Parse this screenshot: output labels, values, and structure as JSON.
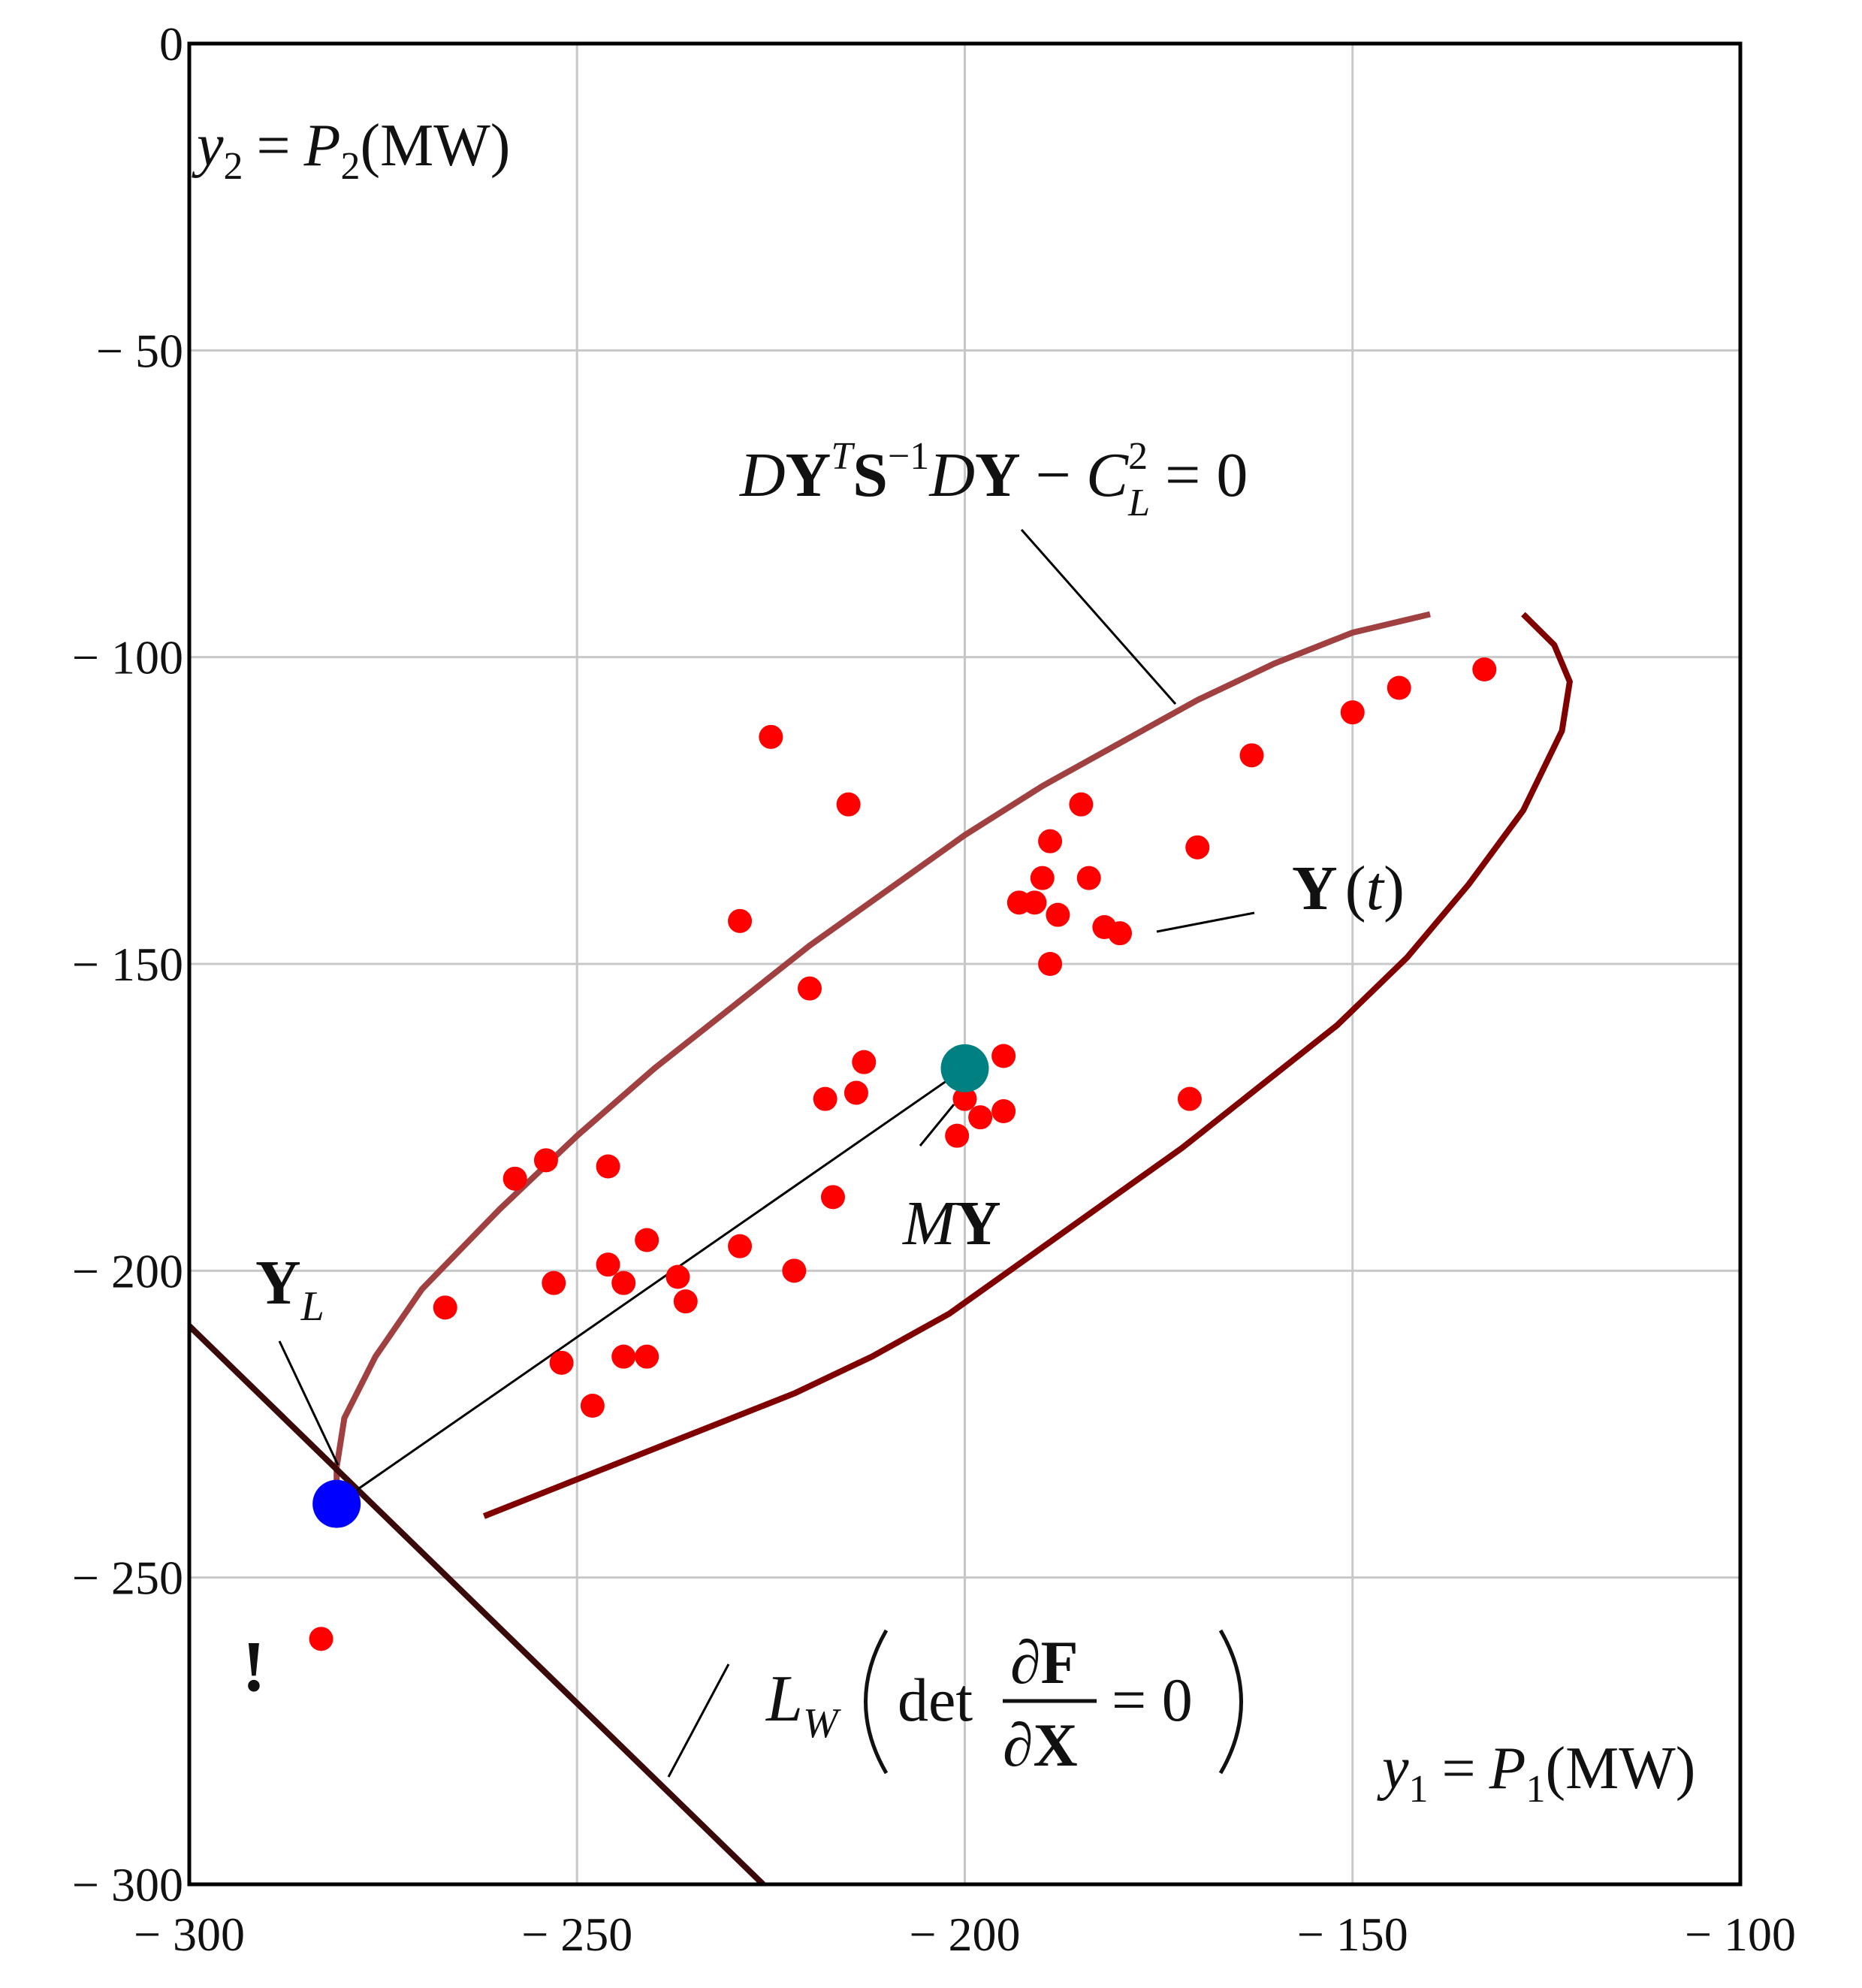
{
  "chart_data": {
    "type": "scatter",
    "title": "",
    "xlabel": {
      "var": "y",
      "var_sub": "1",
      "eq": "=",
      "func": "P",
      "func_sub": "1",
      "unit": "(MW)"
    },
    "ylabel": {
      "var": "y",
      "var_sub": "2",
      "eq": "=",
      "func": "P",
      "func_sub": "2",
      "unit": "(MW)"
    },
    "xlim": [
      -300,
      -100
    ],
    "ylim": [
      -300,
      0
    ],
    "x_ticks": [
      -300,
      -250,
      -200,
      -150,
      -100
    ],
    "y_ticks": [
      0,
      -50,
      -100,
      -150,
      -200,
      -250,
      -300
    ],
    "x_tick_labels": [
      "− 300",
      "− 250",
      "− 200",
      "− 150",
      "− 100"
    ],
    "y_tick_labels": [
      "0",
      "− 50",
      "− 100",
      "− 150",
      "− 200",
      "− 250",
      "− 300"
    ],
    "grid": true,
    "colors": {
      "points": "#ff0000",
      "mean": "#008080",
      "limit_point": "#0000ff",
      "ellipse_upper": "#a04040",
      "ellipse_lower": "#800000",
      "boundary": "#3a0a0a",
      "grid": "#c8c8c8",
      "axes": "#000000"
    },
    "points": [
      [
        -225,
        -113
      ],
      [
        -215,
        -124
      ],
      [
        -229,
        -143
      ],
      [
        -220,
        -154
      ],
      [
        -193,
        -140
      ],
      [
        -191,
        -140
      ],
      [
        -190,
        -136
      ],
      [
        -189,
        -130
      ],
      [
        -188,
        -142
      ],
      [
        -185,
        -124
      ],
      [
        -184,
        -136
      ],
      [
        -182,
        -144
      ],
      [
        -180,
        -145
      ],
      [
        -189,
        -150
      ],
      [
        -170,
        -131
      ],
      [
        -163,
        -116
      ],
      [
        -150,
        -109
      ],
      [
        -144,
        -105
      ],
      [
        -133,
        -102
      ],
      [
        -213,
        -166
      ],
      [
        -214,
        -171
      ],
      [
        -218,
        -172
      ],
      [
        -195,
        -165
      ],
      [
        -200,
        -172
      ],
      [
        -198,
        -175
      ],
      [
        -195,
        -174
      ],
      [
        -201,
        -178
      ],
      [
        -171,
        -172
      ],
      [
        -254,
        -182
      ],
      [
        -258,
        -185
      ],
      [
        -246,
        -183
      ],
      [
        -217,
        -188
      ],
      [
        -241,
        -195
      ],
      [
        -229,
        -196
      ],
      [
        -246,
        -199
      ],
      [
        -244,
        -202
      ],
      [
        -237,
        -201
      ],
      [
        -253,
        -202
      ],
      [
        -236,
        -205
      ],
      [
        -222,
        -200
      ],
      [
        -267,
        -206
      ],
      [
        -252,
        -215
      ],
      [
        -244,
        -214
      ],
      [
        -241,
        -214
      ],
      [
        -248,
        -222
      ],
      [
        -283,
        -260
      ]
    ],
    "mean_point": {
      "x": -200,
      "y": -167,
      "label_main": "M",
      "label_bold": "Y"
    },
    "limit_point": {
      "x": -281,
      "y": -238,
      "label_main": "Y",
      "label_sub": "L"
    },
    "ellipse": {
      "upper_arc": [
        [
          -140,
          -93
        ],
        [
          -150,
          -96
        ],
        [
          -160,
          -101
        ],
        [
          -170,
          -107
        ],
        [
          -180,
          -114
        ],
        [
          -190,
          -121
        ],
        [
          -200,
          -129
        ],
        [
          -210,
          -138
        ],
        [
          -220,
          -147
        ],
        [
          -230,
          -157
        ],
        [
          -240,
          -167
        ],
        [
          -250,
          -178
        ],
        [
          -260,
          -190
        ],
        [
          -270,
          -203
        ],
        [
          -276,
          -214
        ],
        [
          -280,
          -224
        ],
        [
          -281,
          -232
        ],
        [
          -281,
          -238
        ]
      ],
      "lower_arc": [
        [
          -128,
          -93
        ],
        [
          -124,
          -98
        ],
        [
          -122,
          -104
        ],
        [
          -123,
          -112
        ],
        [
          -128,
          -125
        ],
        [
          -135,
          -137
        ],
        [
          -143,
          -149
        ],
        [
          -152,
          -160
        ],
        [
          -162,
          -170
        ],
        [
          -172,
          -180
        ],
        [
          -182,
          -189
        ],
        [
          -192,
          -198
        ],
        [
          -202,
          -207
        ],
        [
          -212,
          -214
        ],
        [
          -222,
          -220
        ],
        [
          -232,
          -225
        ],
        [
          -242,
          -230
        ],
        [
          -252,
          -235
        ],
        [
          -262,
          -240
        ]
      ],
      "label": "DYᵀS⁻¹DY − C²_L = 0",
      "label_parts": {
        "D1": "D",
        "Y1": "Y",
        "T": "T",
        "S": "S",
        "inv": "−1",
        "D2": "D",
        "Y2": "Y",
        "minus": "−",
        "C": "C",
        "sq": "2",
        "L": "L",
        "eq": "= 0"
      }
    },
    "boundary_line": {
      "points": [
        [
          -300,
          -209
        ],
        [
          -226,
          -300
        ]
      ],
      "label_parts": {
        "L": "L",
        "W": "W",
        "det": "det",
        "num": "∂F",
        "den": "∂X",
        "eq": "= 0"
      }
    },
    "series_label": {
      "bold": "Y",
      "arg": "t"
    },
    "insecure_mark": "!"
  }
}
